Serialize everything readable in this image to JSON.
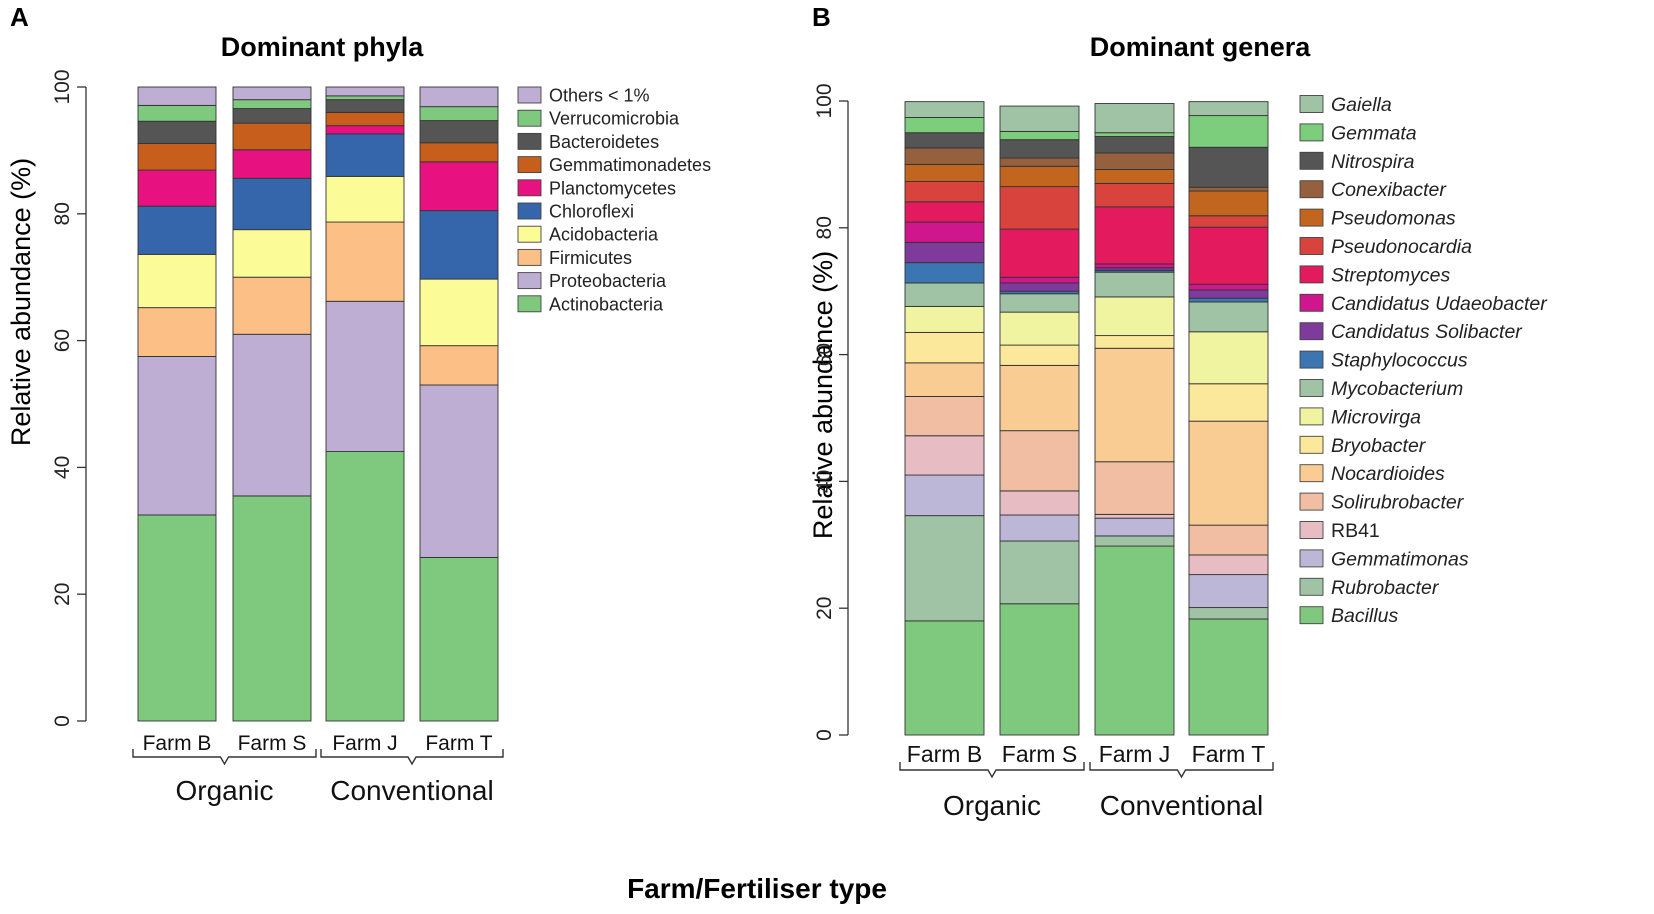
{
  "figure": {
    "xlabel": "Farm/Fertiliser type",
    "colors": {
      "Others < 1%": "#beaed4",
      "Verrucomicrobia": "#7fc97f",
      "Bacteroidetes": "#555555",
      "Gemmatimonadetes": "#c75e1b",
      "Planctomycetes": "#e7117f",
      "Chloroflexi": "#3566ac",
      "Acidobacteria": "#fbfb98",
      "Firmicutes": "#fcbf86",
      "Proteobacteria": "#beaed4",
      "Actinobacteria": "#7fc97f",
      "Gaiella": "#9fc3a4",
      "Gemmata": "#7ccd7c",
      "Nitrospira": "#555555",
      "Conexibacter": "#95603e",
      "Pseudomonas": "#c1651f",
      "Pseudonocardia": "#d8433e",
      "Streptomyces": "#e31b5e",
      "Candidatus Udaeobacter": "#d0168d",
      "Candidatus Solibacter": "#7e3b9c",
      "Staphylococcus": "#3c76b2",
      "Mycobacterium": "#9fc3a4",
      "Microvirga": "#f0f3a0",
      "Bryobacter": "#fbe89a",
      "Nocardioides": "#f9cc94",
      "Solirubrobacter": "#f2bea3",
      "RB41": "#e7bcc3",
      "Gemmatimonas": "#bdb7d7",
      "Rubrobacter": "#9fc3a4",
      "Bacillus": "#7fc97f"
    }
  },
  "chart_data": [
    {
      "panel": "A",
      "type": "bar",
      "stacked": true,
      "title": "Dominant phyla",
      "ylabel": "Relative abundance (%)",
      "xlabel": "Farm/Fertiliser type",
      "ylim": [
        0,
        100
      ],
      "yticks": [
        0,
        20,
        40,
        60,
        80,
        100
      ],
      "categories": [
        "Farm B",
        "Farm S",
        "Farm J",
        "Farm T"
      ],
      "groups": [
        {
          "label": "Organic",
          "categories": [
            "Farm B",
            "Farm S"
          ]
        },
        {
          "label": "Conventional",
          "categories": [
            "Farm J",
            "Farm T"
          ]
        }
      ],
      "legend_order": [
        "Others < 1%",
        "Verrucomicrobia",
        "Bacteroidetes",
        "Gemmatimonadetes",
        "Planctomycetes",
        "Chloroflexi",
        "Acidobacteria",
        "Firmicutes",
        "Proteobacteria",
        "Actinobacteria"
      ],
      "series": [
        {
          "name": "Actinobacteria",
          "values": [
            32.5,
            35.5,
            42.5,
            25.8
          ]
        },
        {
          "name": "Proteobacteria",
          "values": [
            25.0,
            25.5,
            23.7,
            27.2
          ]
        },
        {
          "name": "Firmicutes",
          "values": [
            7.7,
            9.0,
            12.5,
            6.2
          ]
        },
        {
          "name": "Acidobacteria",
          "values": [
            8.4,
            7.5,
            7.2,
            10.5
          ]
        },
        {
          "name": "Chloroflexi",
          "values": [
            7.6,
            8.1,
            6.7,
            10.8
          ]
        },
        {
          "name": "Planctomycetes",
          "values": [
            5.7,
            4.5,
            1.3,
            7.7
          ]
        },
        {
          "name": "Gemmatimonadetes",
          "values": [
            4.2,
            4.2,
            2.1,
            3.0
          ]
        },
        {
          "name": "Bacteroidetes",
          "values": [
            3.5,
            2.3,
            2.0,
            3.5
          ]
        },
        {
          "name": "Verrucomicrobia",
          "values": [
            2.5,
            1.4,
            0.6,
            2.2
          ]
        },
        {
          "name": "Others < 1%",
          "values": [
            2.9,
            2.0,
            1.4,
            3.1
          ]
        }
      ]
    },
    {
      "panel": "B",
      "type": "bar",
      "stacked": true,
      "title": "Dominant genera",
      "ylabel": "Relative abundance (%)",
      "xlabel": "Farm/Fertiliser type",
      "ylim": [
        0,
        100
      ],
      "yticks": [
        0,
        20,
        40,
        60,
        80,
        100
      ],
      "categories": [
        "Farm B",
        "Farm S",
        "Farm J",
        "Farm T"
      ],
      "groups": [
        {
          "label": "Organic",
          "categories": [
            "Farm B",
            "Farm S"
          ]
        },
        {
          "label": "Conventional",
          "categories": [
            "Farm J",
            "Farm T"
          ]
        }
      ],
      "legend_order": [
        "Gaiella",
        "Gemmata",
        "Nitrospira",
        "Conexibacter",
        "Pseudomonas",
        "Pseudonocardia",
        "Streptomyces",
        "Candidatus Udaeobacter",
        "Candidatus Solibacter",
        "Staphylococcus",
        "Mycobacterium",
        "Microvirga",
        "Bryobacter",
        "Nocardioides",
        "Solirubrobacter",
        "RB41",
        "Gemmatimonas",
        "Rubrobacter",
        "Bacillus"
      ],
      "legend_italic_exceptions": [
        "RB41"
      ],
      "series": [
        {
          "name": "Bacillus",
          "values": [
            18.0,
            20.7,
            29.8,
            18.3
          ]
        },
        {
          "name": "Rubrobacter",
          "values": [
            16.6,
            9.9,
            1.6,
            1.8
          ]
        },
        {
          "name": "Gemmatimonas",
          "values": [
            6.4,
            4.1,
            2.8,
            5.2
          ]
        },
        {
          "name": "RB41",
          "values": [
            6.2,
            3.8,
            0.6,
            3.1
          ]
        },
        {
          "name": "Solirubrobacter",
          "values": [
            6.2,
            9.5,
            8.3,
            4.7
          ]
        },
        {
          "name": "Nocardioides",
          "values": [
            5.3,
            10.3,
            17.9,
            16.4
          ]
        },
        {
          "name": "Bryobacter",
          "values": [
            4.8,
            3.2,
            2.0,
            5.9
          ]
        },
        {
          "name": "Microvirga",
          "values": [
            4.1,
            5.2,
            6.1,
            8.2
          ]
        },
        {
          "name": "Mycobacterium",
          "values": [
            3.7,
            2.9,
            3.9,
            4.7
          ]
        },
        {
          "name": "Staphylococcus",
          "values": [
            3.2,
            0.4,
            0.3,
            0.6
          ]
        },
        {
          "name": "Candidatus Solibacter",
          "values": [
            3.2,
            1.3,
            0.4,
            1.3
          ]
        },
        {
          "name": "Candidatus Udaeobacter",
          "values": [
            3.2,
            0.9,
            0.6,
            0.9
          ]
        },
        {
          "name": "Streptomyces",
          "values": [
            3.2,
            7.6,
            9.0,
            9.0
          ]
        },
        {
          "name": "Pseudonocardia",
          "values": [
            3.2,
            6.7,
            3.7,
            1.8
          ]
        },
        {
          "name": "Pseudomonas",
          "values": [
            2.7,
            3.2,
            2.2,
            3.9
          ]
        },
        {
          "name": "Conexibacter",
          "values": [
            2.6,
            1.3,
            2.6,
            0.6
          ]
        },
        {
          "name": "Nitrospira",
          "values": [
            2.4,
            2.9,
            2.6,
            6.3
          ]
        },
        {
          "name": "Gemmata",
          "values": [
            2.4,
            1.3,
            0.6,
            5.0
          ]
        },
        {
          "name": "Gaiella",
          "values": [
            2.5,
            4.0,
            4.6,
            2.2
          ]
        }
      ]
    }
  ]
}
